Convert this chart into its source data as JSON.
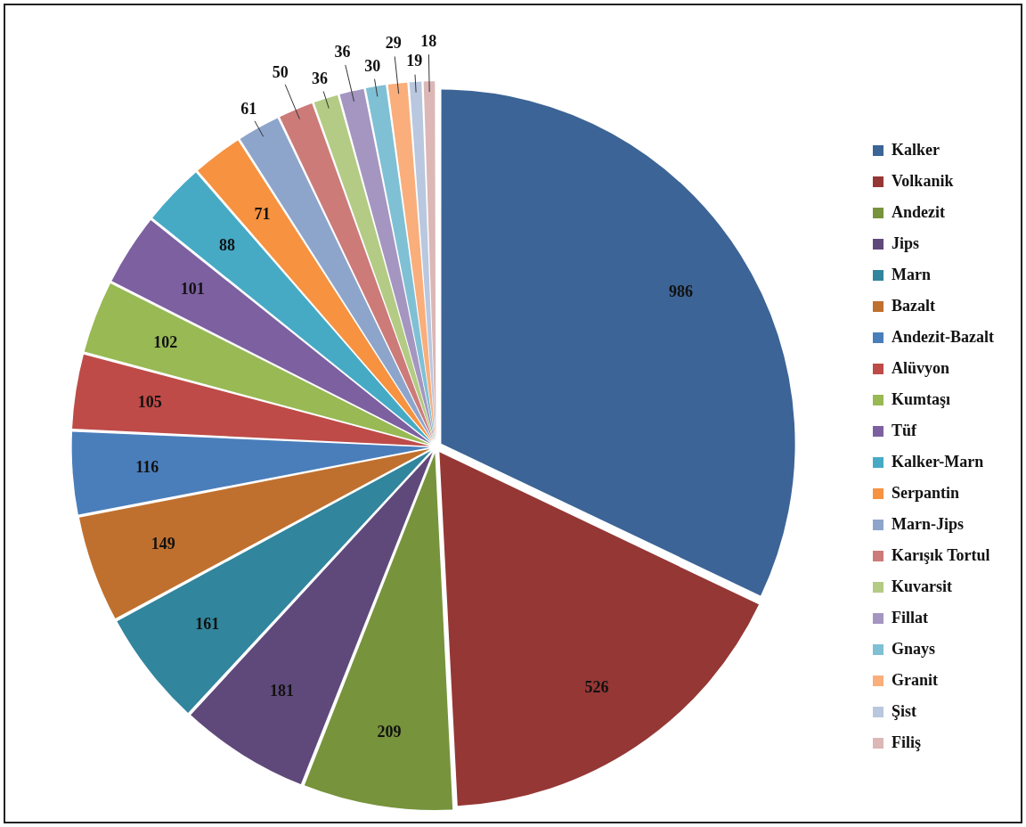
{
  "chart_data": {
    "type": "pie",
    "categories": [
      "Kalker",
      "Volkanik",
      "Andezit",
      "Jips",
      "Marn",
      "Bazalt",
      "Andezit-Bazalt",
      "Alüvyon",
      "Kumtaşı",
      "Tüf",
      "Kalker-Marn",
      "Serpantin",
      "Marn-Jips",
      "Karışık Tortul",
      "Kuvarsit",
      "Fillat",
      "Gnays",
      "Granit",
      "Şist",
      "Filiş"
    ],
    "values": [
      986,
      526,
      209,
      181,
      161,
      149,
      116,
      105,
      102,
      101,
      88,
      71,
      61,
      50,
      36,
      36,
      30,
      29,
      19,
      18
    ],
    "colors": [
      "#3c6496",
      "#953735",
      "#77933c",
      "#5f497a",
      "#31859c",
      "#c0702e",
      "#4a7ebb",
      "#be4b48",
      "#98b954",
      "#7d60a0",
      "#46aac5",
      "#f69240",
      "#8ea5cb",
      "#cc7b79",
      "#b3cb84",
      "#a496c0",
      "#7fc0d4",
      "#f9ae7c",
      "#b9c7df",
      "#dbb7b6"
    ],
    "data_labels": true,
    "legend": "right"
  }
}
